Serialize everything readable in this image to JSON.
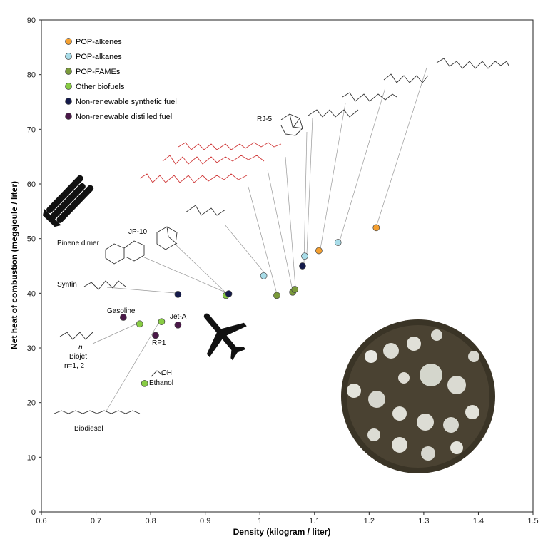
{
  "chart_data": {
    "type": "scatter",
    "xlabel": "Density (kilogram / liter)",
    "ylabel": "Net heat of combustion (megajoule / liter)",
    "xlim": [
      0.6,
      1.5
    ],
    "ylim": [
      0,
      90
    ],
    "xticks": [
      "0.6",
      "0.7",
      "0.8",
      "0.9",
      "1",
      "1.1",
      "1.2",
      "1.3",
      "1.4",
      "1.5"
    ],
    "yticks": [
      "0",
      "10",
      "20",
      "30",
      "40",
      "50",
      "60",
      "70",
      "80",
      "90"
    ],
    "legend_position": "top-left",
    "series": [
      {
        "name": "POP-alkenes",
        "color": "#f5a030",
        "points": [
          [
            1.108,
            47.8
          ],
          [
            1.213,
            52.0
          ]
        ]
      },
      {
        "name": "POP-alkanes",
        "color": "#a8dce8",
        "points": [
          [
            1.007,
            43.2
          ],
          [
            1.082,
            46.8
          ],
          [
            1.143,
            49.3
          ]
        ]
      },
      {
        "name": "POP-FAMEs",
        "color": "#7a9a3a",
        "points": [
          [
            1.031,
            39.6
          ],
          [
            1.06,
            40.2
          ],
          [
            1.064,
            40.7
          ]
        ]
      },
      {
        "name": "Other biofuels",
        "color": "#88cc44",
        "points": [
          [
            0.78,
            34.4
          ],
          [
            0.82,
            34.8
          ],
          [
            0.789,
            23.5
          ],
          [
            0.938,
            39.6
          ]
        ]
      },
      {
        "name": "Non-renewable synthetic fuel",
        "color": "#141a4a",
        "points": [
          [
            0.85,
            39.8
          ],
          [
            0.943,
            39.9
          ],
          [
            1.078,
            45.0
          ]
        ]
      },
      {
        "name": "Non-renewable distilled fuel",
        "color": "#4a1848",
        "points": [
          [
            0.75,
            35.6
          ],
          [
            0.809,
            32.3
          ],
          [
            0.85,
            34.2
          ]
        ]
      }
    ],
    "annotations": [
      "RJ-5",
      "JP-10",
      "Pinene dimer",
      "Syntin",
      "Gasoline",
      "Jet-A",
      "RP1",
      "Biojet",
      "n=1, 2",
      "n",
      "OH",
      "Ethanol",
      "Biodiesel"
    ]
  },
  "labels": {
    "rj5": "RJ-5",
    "jp10": "JP-10",
    "pinene": "Pinene dimer",
    "syntin": "Syntin",
    "gasoline": "Gasoline",
    "jeta": "Jet-A",
    "rp1": "RP1",
    "biojet": "Biojet",
    "biojet_n": "n=1, 2",
    "n": "n",
    "oh": "OH",
    "ethanol": "Ethanol",
    "biodiesel": "Biodiesel"
  },
  "icons": [
    "rocket-icon",
    "airplane-icon",
    "petri-dish-photo"
  ]
}
